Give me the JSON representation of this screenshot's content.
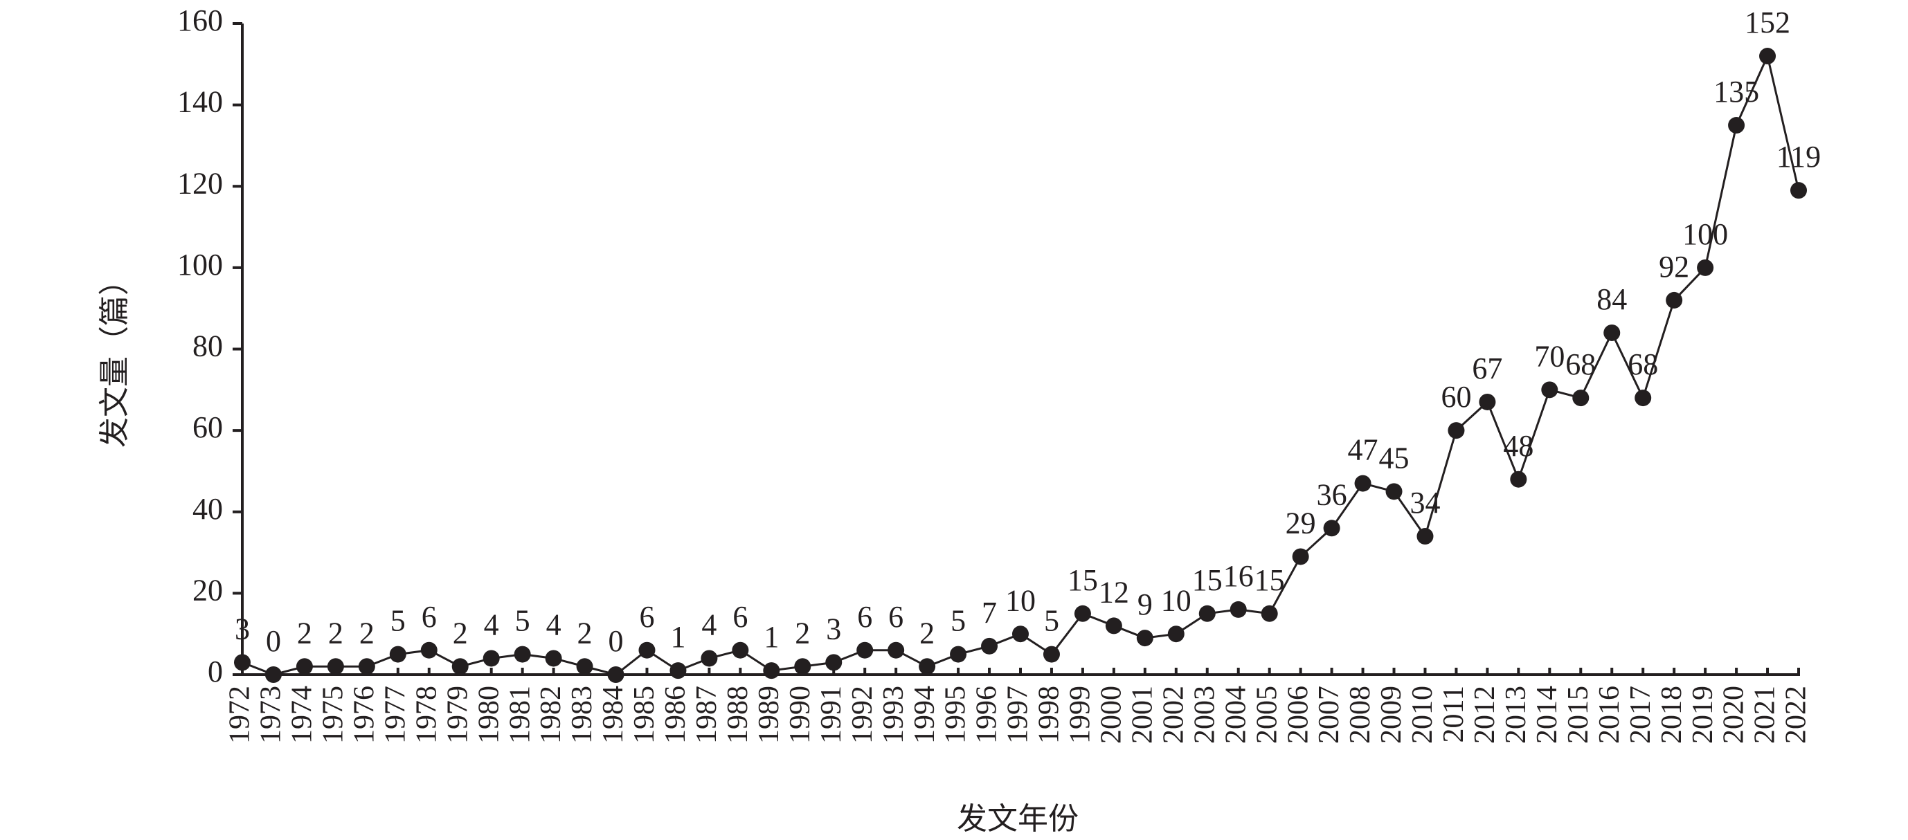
{
  "chart_data": {
    "type": "line",
    "x_label": "发文年份",
    "y_label": "发文量（篇）",
    "categories": [
      "1972",
      "1973",
      "1974",
      "1975",
      "1976",
      "1977",
      "1978",
      "1979",
      "1980",
      "1981",
      "1982",
      "1983",
      "1984",
      "1985",
      "1986",
      "1987",
      "1988",
      "1989",
      "1990",
      "1991",
      "1992",
      "1993",
      "1994",
      "1995",
      "1996",
      "1997",
      "1998",
      "1999",
      "2000",
      "2001",
      "2002",
      "2003",
      "2004",
      "2005",
      "2006",
      "2007",
      "2008",
      "2009",
      "2010",
      "2011",
      "2012",
      "2013",
      "2014",
      "2015",
      "2016",
      "2017",
      "2018",
      "2019",
      "2020",
      "2021",
      "2022"
    ],
    "values": [
      3,
      0,
      2,
      2,
      2,
      5,
      6,
      2,
      4,
      5,
      4,
      2,
      0,
      6,
      1,
      4,
      6,
      1,
      2,
      3,
      6,
      6,
      2,
      5,
      7,
      10,
      5,
      15,
      12,
      9,
      10,
      15,
      16,
      15,
      29,
      36,
      47,
      45,
      34,
      60,
      67,
      48,
      70,
      68,
      84,
      68,
      92,
      100,
      135,
      152,
      119
    ],
    "color": "#231f20",
    "ylim": [
      0,
      160
    ],
    "yticks": [
      0,
      20,
      40,
      60,
      80,
      100,
      120,
      140,
      160
    ],
    "grid": false
  }
}
